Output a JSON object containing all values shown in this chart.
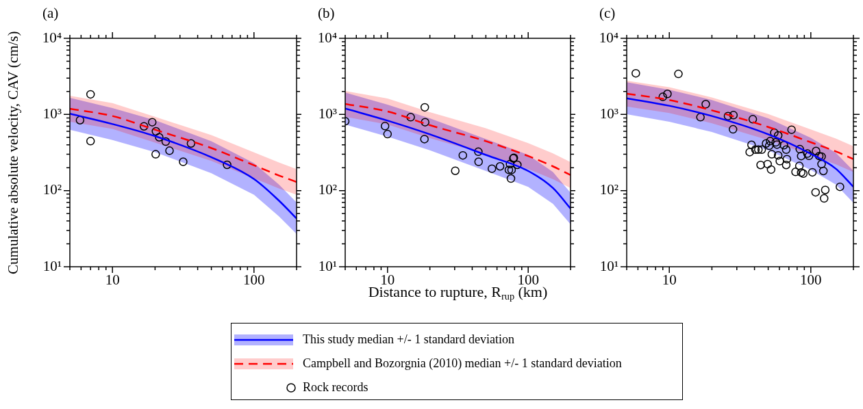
{
  "chart_data": [
    {
      "type": "line",
      "title": "(a)",
      "ylabel": "Cumulative absolute velocity, CAV (cm/s)",
      "log": "xy",
      "xlim": [
        5,
        200
      ],
      "ylim": [
        10,
        10000
      ],
      "xticks": [
        {
          "value": 5,
          "label": null
        },
        {
          "value": 6,
          "label": null
        },
        {
          "value": 7,
          "label": null
        },
        {
          "value": 8,
          "label": null
        },
        {
          "value": 9,
          "label": null
        },
        {
          "value": 10,
          "label": "10"
        },
        {
          "value": 20,
          "label": null
        },
        {
          "value": 30,
          "label": null
        },
        {
          "value": 40,
          "label": null
        },
        {
          "value": 50,
          "label": null
        },
        {
          "value": 60,
          "label": null
        },
        {
          "value": 70,
          "label": null
        },
        {
          "value": 80,
          "label": null
        },
        {
          "value": 90,
          "label": null
        },
        {
          "value": 100,
          "label": "100"
        },
        {
          "value": 200,
          "label": null
        }
      ],
      "yticks": [
        {
          "value": 10,
          "label": "10¹"
        },
        {
          "value": 20,
          "label": null
        },
        {
          "value": 30,
          "label": null
        },
        {
          "value": 40,
          "label": null
        },
        {
          "value": 50,
          "label": null
        },
        {
          "value": 60,
          "label": null
        },
        {
          "value": 70,
          "label": null
        },
        {
          "value": 80,
          "label": null
        },
        {
          "value": 90,
          "label": null
        },
        {
          "value": 100,
          "label": "10²"
        },
        {
          "value": 200,
          "label": null
        },
        {
          "value": 300,
          "label": null
        },
        {
          "value": 400,
          "label": null
        },
        {
          "value": 500,
          "label": null
        },
        {
          "value": 600,
          "label": null
        },
        {
          "value": 700,
          "label": null
        },
        {
          "value": 800,
          "label": null
        },
        {
          "value": 900,
          "label": null
        },
        {
          "value": 1000,
          "label": "10³"
        },
        {
          "value": 2000,
          "label": null
        },
        {
          "value": 3000,
          "label": null
        },
        {
          "value": 4000,
          "label": null
        },
        {
          "value": 5000,
          "label": null
        },
        {
          "value": 6000,
          "label": null
        },
        {
          "value": 7000,
          "label": null
        },
        {
          "value": 8000,
          "label": null
        },
        {
          "value": 9000,
          "label": null
        },
        {
          "value": 10000,
          "label": "10⁴"
        }
      ],
      "x": [
        5,
        10,
        20,
        50,
        100,
        150,
        200
      ],
      "series": [
        {
          "type": "line",
          "color": "#0000ff",
          "line_style": "solid",
          "values": [
            1021,
            748,
            519,
            274,
            142,
            74,
            43
          ],
          "upper": [
            1656,
            1213,
            842,
            444,
            230,
            120,
            70
          ],
          "lower": [
            629,
            461,
            320,
            169,
            88,
            46,
            27
          ]
        },
        {
          "type": "line",
          "color": "#ff0000",
          "line_style": "dashed",
          "values": [
            1189,
            953,
            630,
            362,
            215,
            158,
            130
          ],
          "upper": [
            1759,
            1409,
            932,
            535,
            318,
            234,
            192
          ],
          "lower": [
            804,
            644,
            426,
            245,
            145,
            107,
            88
          ]
        },
        {
          "type": "scatter",
          "color": "#000000",
          "marker": "circle",
          "x": [
            5.9,
            7.0,
            7.0,
            16.7,
            19.1,
            20.3,
            21.4,
            20.2,
            23.8,
            25.3,
            31.6,
            35.9,
            64.6
          ],
          "values": [
            841,
            1837,
            446,
            698,
            791,
            600,
            501,
            300,
            440,
            334,
            239,
            416,
            218
          ]
        }
      ]
    },
    {
      "type": "line",
      "title": "(b)",
      "xlabel": "Distance to rupture, R$_{rup}$ (km)",
      "log": "xy",
      "xlim": [
        5,
        200
      ],
      "ylim": [
        10,
        10000
      ],
      "legend": "bottom",
      "xticks": [
        {
          "value": 5,
          "label": null
        },
        {
          "value": 6,
          "label": null
        },
        {
          "value": 7,
          "label": null
        },
        {
          "value": 8,
          "label": null
        },
        {
          "value": 9,
          "label": null
        },
        {
          "value": 10,
          "label": "10"
        },
        {
          "value": 20,
          "label": null
        },
        {
          "value": 30,
          "label": null
        },
        {
          "value": 40,
          "label": null
        },
        {
          "value": 50,
          "label": null
        },
        {
          "value": 60,
          "label": null
        },
        {
          "value": 70,
          "label": null
        },
        {
          "value": 80,
          "label": null
        },
        {
          "value": 90,
          "label": null
        },
        {
          "value": 100,
          "label": "100"
        },
        {
          "value": 200,
          "label": null
        }
      ],
      "yticks": [
        {
          "value": 10,
          "label": "10¹"
        },
        {
          "value": 20,
          "label": null
        },
        {
          "value": 30,
          "label": null
        },
        {
          "value": 40,
          "label": null
        },
        {
          "value": 50,
          "label": null
        },
        {
          "value": 60,
          "label": null
        },
        {
          "value": 70,
          "label": null
        },
        {
          "value": 80,
          "label": null
        },
        {
          "value": 90,
          "label": null
        },
        {
          "value": 100,
          "label": "10²"
        },
        {
          "value": 200,
          "label": null
        },
        {
          "value": 300,
          "label": null
        },
        {
          "value": 400,
          "label": null
        },
        {
          "value": 500,
          "label": null
        },
        {
          "value": 600,
          "label": null
        },
        {
          "value": 700,
          "label": null
        },
        {
          "value": 800,
          "label": null
        },
        {
          "value": 900,
          "label": null
        },
        {
          "value": 1000,
          "label": "10³"
        },
        {
          "value": 2000,
          "label": null
        },
        {
          "value": 3000,
          "label": null
        },
        {
          "value": 4000,
          "label": null
        },
        {
          "value": 5000,
          "label": null
        },
        {
          "value": 6000,
          "label": null
        },
        {
          "value": 7000,
          "label": null
        },
        {
          "value": 8000,
          "label": null
        },
        {
          "value": 9000,
          "label": null
        },
        {
          "value": 10000,
          "label": "10⁴"
        }
      ],
      "x": [
        5,
        10,
        20,
        50,
        100,
        150,
        200
      ],
      "series": [
        {
          "type": "line",
          "name": "This study median +/- 1 standard deviation",
          "color": "#0000ff",
          "line_style": "solid",
          "values": [
            1197,
            830,
            548,
            294,
            181,
            108,
            58
          ],
          "upper": [
            1942,
            1346,
            889,
            477,
            294,
            175,
            94
          ],
          "lower": [
            738,
            512,
            338,
            181,
            112,
            67,
            36
          ]
        },
        {
          "type": "line",
          "name": "Campbell and Bozorgnia (2010) median +/- 1 standard deviation",
          "color": "#ff0000",
          "line_style": "dashed",
          "values": [
            1374,
            1094,
            723,
            446,
            284,
            208,
            160
          ],
          "upper": [
            2032,
            1618,
            1069,
            660,
            420,
            308,
            237
          ],
          "lower": [
            929,
            740,
            489,
            302,
            192,
            141,
            108
          ]
        },
        {
          "type": "scatter",
          "name": "Rock records",
          "color": "#000000",
          "marker": "circle",
          "x": [
            5.0,
            9.6,
            10.0,
            14.6,
            18.4,
            18.5,
            18.3,
            30.3,
            34.3,
            44.2,
            44.4,
            55.2,
            63.1,
            72.9,
            74.3,
            76.2,
            75.4,
            79.1,
            78.3,
            83.7
          ],
          "values": [
            813,
            703,
            552,
            920,
            1240,
            791,
            474,
            182,
            290,
            324,
            239,
            194,
            208,
            187,
            223,
            187,
            144,
            270,
            265,
            218
          ]
        }
      ]
    },
    {
      "type": "line",
      "title": "(c)",
      "log": "xy",
      "xlim": [
        5,
        200
      ],
      "ylim": [
        10,
        10000
      ],
      "xticks": [
        {
          "value": 5,
          "label": null
        },
        {
          "value": 6,
          "label": null
        },
        {
          "value": 7,
          "label": null
        },
        {
          "value": 8,
          "label": null
        },
        {
          "value": 9,
          "label": null
        },
        {
          "value": 10,
          "label": "10"
        },
        {
          "value": 20,
          "label": null
        },
        {
          "value": 30,
          "label": null
        },
        {
          "value": 40,
          "label": null
        },
        {
          "value": 50,
          "label": null
        },
        {
          "value": 60,
          "label": null
        },
        {
          "value": 70,
          "label": null
        },
        {
          "value": 80,
          "label": null
        },
        {
          "value": 90,
          "label": null
        },
        {
          "value": 100,
          "label": "100"
        },
        {
          "value": 200,
          "label": null
        }
      ],
      "yticks": [
        {
          "value": 10,
          "label": "10¹"
        },
        {
          "value": 20,
          "label": null
        },
        {
          "value": 30,
          "label": null
        },
        {
          "value": 40,
          "label": null
        },
        {
          "value": 50,
          "label": null
        },
        {
          "value": 60,
          "label": null
        },
        {
          "value": 70,
          "label": null
        },
        {
          "value": 80,
          "label": null
        },
        {
          "value": 90,
          "label": null
        },
        {
          "value": 100,
          "label": "10²"
        },
        {
          "value": 200,
          "label": null
        },
        {
          "value": 300,
          "label": null
        },
        {
          "value": 400,
          "label": null
        },
        {
          "value": 500,
          "label": null
        },
        {
          "value": 600,
          "label": null
        },
        {
          "value": 700,
          "label": null
        },
        {
          "value": 800,
          "label": null
        },
        {
          "value": 900,
          "label": null
        },
        {
          "value": 1000,
          "label": "10³"
        },
        {
          "value": 2000,
          "label": null
        },
        {
          "value": 3000,
          "label": null
        },
        {
          "value": 4000,
          "label": null
        },
        {
          "value": 5000,
          "label": null
        },
        {
          "value": 6000,
          "label": null
        },
        {
          "value": 7000,
          "label": null
        },
        {
          "value": 8000,
          "label": null
        },
        {
          "value": 9000,
          "label": null
        },
        {
          "value": 10000,
          "label": "10⁴"
        }
      ],
      "x": [
        5,
        10,
        20,
        50,
        100,
        150,
        200
      ],
      "series": [
        {
          "type": "line",
          "color": "#0000ff",
          "line_style": "solid",
          "values": [
            1633,
            1300,
            953,
            548,
            304,
            194,
            112
          ],
          "upper": [
            2649,
            2109,
            1546,
            889,
            493,
            315,
            182
          ],
          "lower": [
            1007,
            801,
            588,
            338,
            187,
            120,
            69
          ]
        },
        {
          "type": "line",
          "color": "#ff0000",
          "line_style": "dashed",
          "values": [
            1875,
            1545,
            1132,
            684,
            431,
            327,
            259
          ],
          "upper": [
            2773,
            2285,
            1674,
            1012,
            637,
            484,
            383
          ],
          "lower": [
            1268,
            1045,
            765,
            462,
            291,
            221,
            175
          ]
        },
        {
          "type": "scatter",
          "color": "#000000",
          "marker": "circle",
          "x": [
            5.8,
            11.6,
            9.0,
            9.7,
            18.1,
            16.6,
            26.0,
            28.4,
            28.2,
            38.9,
            73.1,
            55.2,
            58.8,
            37.0,
            38.1,
            40.6,
            42.6,
            45.0,
            48.3,
            50.8,
            51.6,
            56.6,
            57.7,
            53.0,
            58.8,
            60.4,
            64.6,
            67.0,
            67.8,
            67.0,
            44.2,
            49.5,
            52.4,
            78.0,
            83.0,
            85.5,
            88.5,
            83.6,
            85.5,
            94.6,
            97.1,
            102.6,
            108.9,
            114.7,
            119.1,
            119.1,
            122.7,
            108.1,
            126.5,
            124.2,
            160.7
          ],
          "values": [
            3473,
            3405,
            1702,
            1862,
            1365,
            920,
            953,
            980,
            638,
            865,
            630,
            575,
            530,
            320,
            399,
            345,
            345,
            345,
            416,
            388,
            446,
            431,
            402,
            300,
            290,
            244,
            394,
            345,
            259,
            217,
            217,
            223,
            189,
            176,
            211,
            173,
            167,
            350,
            284,
            306,
            286,
            174,
            331,
            284,
            280,
            223,
            181,
            95,
            102,
            79,
            112
          ]
        }
      ]
    }
  ]
}
